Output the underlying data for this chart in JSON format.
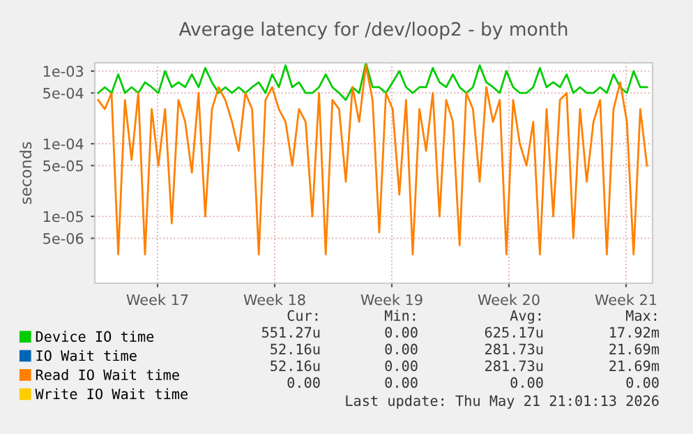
{
  "chart_data": {
    "type": "line",
    "title": "Average latency for /dev/loop2 - by month",
    "ylabel": "seconds",
    "log": "y",
    "xlim": [
      "2026-04-18T13:00",
      "2026-05-21T21:00"
    ],
    "xticks": [
      {
        "value": "2026-04-22T07:00",
        "label": "Week 17"
      },
      {
        "value": "2026-04-29T07:00",
        "label": "Week 18"
      },
      {
        "value": "2026-05-06T07:00",
        "label": "Week 19"
      },
      {
        "value": "2026-05-13T07:00",
        "label": "Week 20"
      },
      {
        "value": "2026-05-20T07:00",
        "label": "Week 21"
      }
    ],
    "ylim": [
      1.2e-06,
      0.0013
    ],
    "yticks": [
      {
        "value": 0.001,
        "label": "1e-03"
      },
      {
        "value": 0.0005,
        "label": "5e-04"
      },
      {
        "value": 0.0001,
        "label": "1e-04"
      },
      {
        "value": 5e-05,
        "label": "5e-05"
      },
      {
        "value": 1e-05,
        "label": "1e-05"
      },
      {
        "value": 5e-06,
        "label": "5e-06"
      }
    ],
    "grid": true,
    "legend": "bottom",
    "marker": "none",
    "line_style": "solid",
    "x": [
      "2026-04-18T17:48",
      "2026-04-19T03:24",
      "2026-04-19T13:00",
      "2026-04-19T22:36",
      "2026-04-20T08:12",
      "2026-04-20T17:48",
      "2026-04-21T03:24",
      "2026-04-21T13:00",
      "2026-04-21T22:36",
      "2026-04-22T08:12",
      "2026-04-22T17:48",
      "2026-04-23T03:24",
      "2026-04-23T13:00",
      "2026-04-23T22:36",
      "2026-04-24T08:12",
      "2026-04-24T17:48",
      "2026-04-25T03:24",
      "2026-04-25T13:00",
      "2026-04-25T22:36",
      "2026-04-26T08:12",
      "2026-04-26T17:48",
      "2026-04-27T03:24",
      "2026-04-27T13:00",
      "2026-04-27T22:36",
      "2026-04-28T08:12",
      "2026-04-28T17:48",
      "2026-04-29T03:24",
      "2026-04-29T13:00",
      "2026-04-29T22:36",
      "2026-04-30T08:12",
      "2026-04-30T17:48",
      "2026-05-01T03:24",
      "2026-05-01T13:00",
      "2026-05-01T22:36",
      "2026-05-02T08:12",
      "2026-05-02T17:48",
      "2026-05-03T03:24",
      "2026-05-03T13:00",
      "2026-05-03T22:36",
      "2026-05-04T08:12",
      "2026-05-04T17:48",
      "2026-05-05T03:24",
      "2026-05-05T13:00",
      "2026-05-05T22:36",
      "2026-05-06T08:12",
      "2026-05-06T17:48",
      "2026-05-07T03:24",
      "2026-05-07T13:00",
      "2026-05-07T22:36",
      "2026-05-08T08:12",
      "2026-05-08T17:48",
      "2026-05-09T03:24",
      "2026-05-09T13:00",
      "2026-05-09T22:36",
      "2026-05-10T08:12",
      "2026-05-10T17:48",
      "2026-05-11T03:24",
      "2026-05-11T13:00",
      "2026-05-11T22:36",
      "2026-05-12T08:12",
      "2026-05-12T17:48",
      "2026-05-13T03:24",
      "2026-05-13T13:00",
      "2026-05-13T22:36",
      "2026-05-14T08:12",
      "2026-05-14T17:48",
      "2026-05-15T03:24",
      "2026-05-15T13:00",
      "2026-05-15T22:36",
      "2026-05-16T08:12",
      "2026-05-16T17:48",
      "2026-05-17T03:24",
      "2026-05-17T13:00",
      "2026-05-17T22:36",
      "2026-05-18T08:12",
      "2026-05-18T17:48",
      "2026-05-19T03:24",
      "2026-05-19T13:00",
      "2026-05-19T22:36",
      "2026-05-20T08:12",
      "2026-05-20T17:48",
      "2026-05-21T03:24",
      "2026-05-21T13:00"
    ],
    "series": [
      {
        "name": "Device IO time",
        "color": "#00cc00",
        "values": [
          0.0005,
          0.0006,
          0.0005,
          0.0009,
          0.0005,
          0.0006,
          0.0005,
          0.0007,
          0.0006,
          0.0005,
          0.001,
          0.0006,
          0.0007,
          0.0006,
          0.0009,
          0.0006,
          0.0011,
          0.0007,
          0.0005,
          0.0006,
          0.0005,
          0.0006,
          0.0005,
          0.0006,
          0.0007,
          0.0005,
          0.0009,
          0.0006,
          0.0012,
          0.0006,
          0.0007,
          0.0005,
          0.0005,
          0.0006,
          0.0009,
          0.0006,
          0.0005,
          0.0004,
          0.0006,
          0.0005,
          0.0013,
          0.0006,
          0.0006,
          0.0005,
          0.0007,
          0.001,
          0.0006,
          0.0005,
          0.0006,
          0.0006,
          0.0011,
          0.0007,
          0.0006,
          0.0009,
          0.0006,
          0.0005,
          0.0006,
          0.0012,
          0.0007,
          0.0006,
          0.0005,
          0.001,
          0.0006,
          0.0005,
          0.0005,
          0.0006,
          0.0011,
          0.0006,
          0.0007,
          0.0006,
          0.0009,
          0.0005,
          0.0006,
          0.0005,
          0.0005,
          0.0006,
          0.0005,
          0.0009,
          0.0006,
          0.0005,
          0.001,
          0.0006,
          0.0006
        ]
      },
      {
        "name": "IO Wait time",
        "color": "#0066b3",
        "values": [
          null,
          null,
          null,
          null,
          null,
          null,
          null,
          null,
          null,
          null,
          null,
          null,
          null,
          null,
          null,
          null,
          null,
          null,
          null,
          null,
          null,
          null,
          null,
          null,
          null,
          null,
          null,
          null,
          null,
          null,
          null,
          null,
          null,
          null,
          null,
          null,
          null,
          null,
          null,
          null,
          null,
          null,
          null,
          null,
          null,
          null,
          null,
          null,
          null,
          null,
          null,
          null,
          null,
          null,
          null,
          null,
          null,
          null,
          null,
          null,
          null,
          null,
          null,
          null,
          null,
          null,
          null,
          null,
          null,
          null,
          null,
          null,
          null,
          null,
          null,
          null,
          null,
          null,
          null,
          null,
          null,
          null,
          null
        ]
      },
      {
        "name": "Read IO Wait time",
        "color": "#ff8000",
        "values": [
          0.0004,
          0.0003,
          0.0005,
          3e-06,
          0.0004,
          6e-05,
          0.0005,
          3e-06,
          0.0003,
          5e-05,
          0.0003,
          8e-06,
          0.0004,
          0.0002,
          4e-05,
          0.0005,
          1e-05,
          0.0003,
          0.0006,
          0.0004,
          0.0002,
          8e-05,
          0.0005,
          0.0003,
          3e-06,
          0.0004,
          0.0006,
          0.0003,
          0.0002,
          5e-05,
          0.0003,
          0.0002,
          1e-05,
          0.0005,
          3e-06,
          0.0004,
          0.0003,
          3e-05,
          0.0006,
          0.0002,
          0.0012,
          0.0004,
          6e-06,
          0.0005,
          0.0003,
          2e-05,
          0.0004,
          3e-06,
          0.0003,
          8e-05,
          0.0005,
          1e-05,
          0.0004,
          0.0002,
          4e-06,
          0.0005,
          0.0003,
          3e-05,
          0.0006,
          0.0002,
          0.0004,
          3e-06,
          0.0004,
          0.0001,
          5e-05,
          0.0002,
          3e-06,
          0.0003,
          1e-05,
          0.0004,
          0.0005,
          5e-06,
          0.0003,
          3e-05,
          0.0002,
          0.0004,
          3e-06,
          0.0003,
          0.0007,
          0.0002,
          3e-06,
          0.0003,
          5e-05
        ]
      },
      {
        "name": "Write IO Wait time",
        "color": "#ffcc00",
        "values": [
          null,
          null,
          null,
          null,
          null,
          null,
          null,
          null,
          null,
          null,
          null,
          null,
          null,
          null,
          null,
          null,
          null,
          null,
          null,
          null,
          null,
          null,
          null,
          null,
          null,
          null,
          null,
          null,
          null,
          null,
          null,
          null,
          null,
          null,
          null,
          null,
          null,
          null,
          null,
          null,
          null,
          null,
          null,
          null,
          null,
          null,
          null,
          null,
          null,
          null,
          null,
          null,
          null,
          null,
          null,
          null,
          null,
          null,
          null,
          null,
          null,
          null,
          null,
          null,
          null,
          null,
          null,
          null,
          null,
          null,
          null,
          null,
          null,
          null,
          null,
          null,
          null,
          null,
          null,
          null,
          null,
          null,
          null
        ]
      }
    ],
    "annotations": [
      "Cur:",
      "Min:",
      "Avg:",
      "Max:",
      "551.27u",
      "0.00",
      "625.17u",
      "17.92m",
      "52.16u",
      "0.00",
      "281.73u",
      "21.69m",
      "52.16u",
      "0.00",
      "281.73u",
      "21.69m",
      "0.00",
      "0.00",
      "0.00",
      "0.00",
      "Last update: Thu May 21 21:01:13 2026"
    ]
  }
}
